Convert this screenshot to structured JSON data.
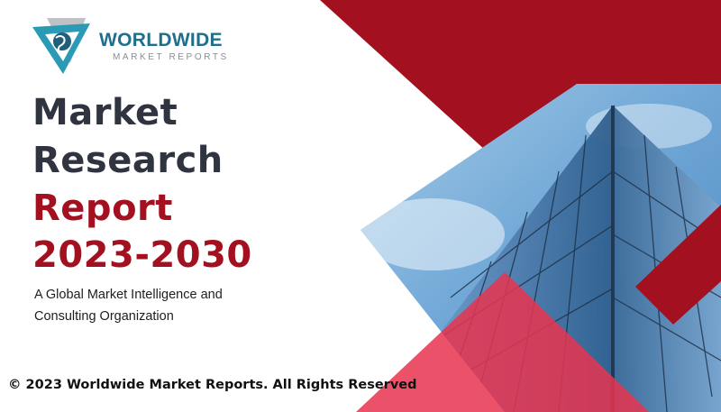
{
  "logo": {
    "brand": "WORLDWIDE",
    "tagline": "MARKET REPORTS",
    "icon": "globe-in-triangle-icon",
    "colors": {
      "teal": "#2a9ab5",
      "gray": "#bfc1c4"
    }
  },
  "headline": {
    "line1": "Market",
    "line2": "Research",
    "line3": "Report",
    "line4": "2023-2030"
  },
  "subtitle": {
    "line1": "A Global Market Intelligence and",
    "line2": "Consulting Organization"
  },
  "footer": "© 2023 Worldwide Market Reports. All Rights Reserved",
  "colors": {
    "dark_red": "#a3101f",
    "pink": "#e8344f",
    "text_dark": "#2f3440"
  }
}
